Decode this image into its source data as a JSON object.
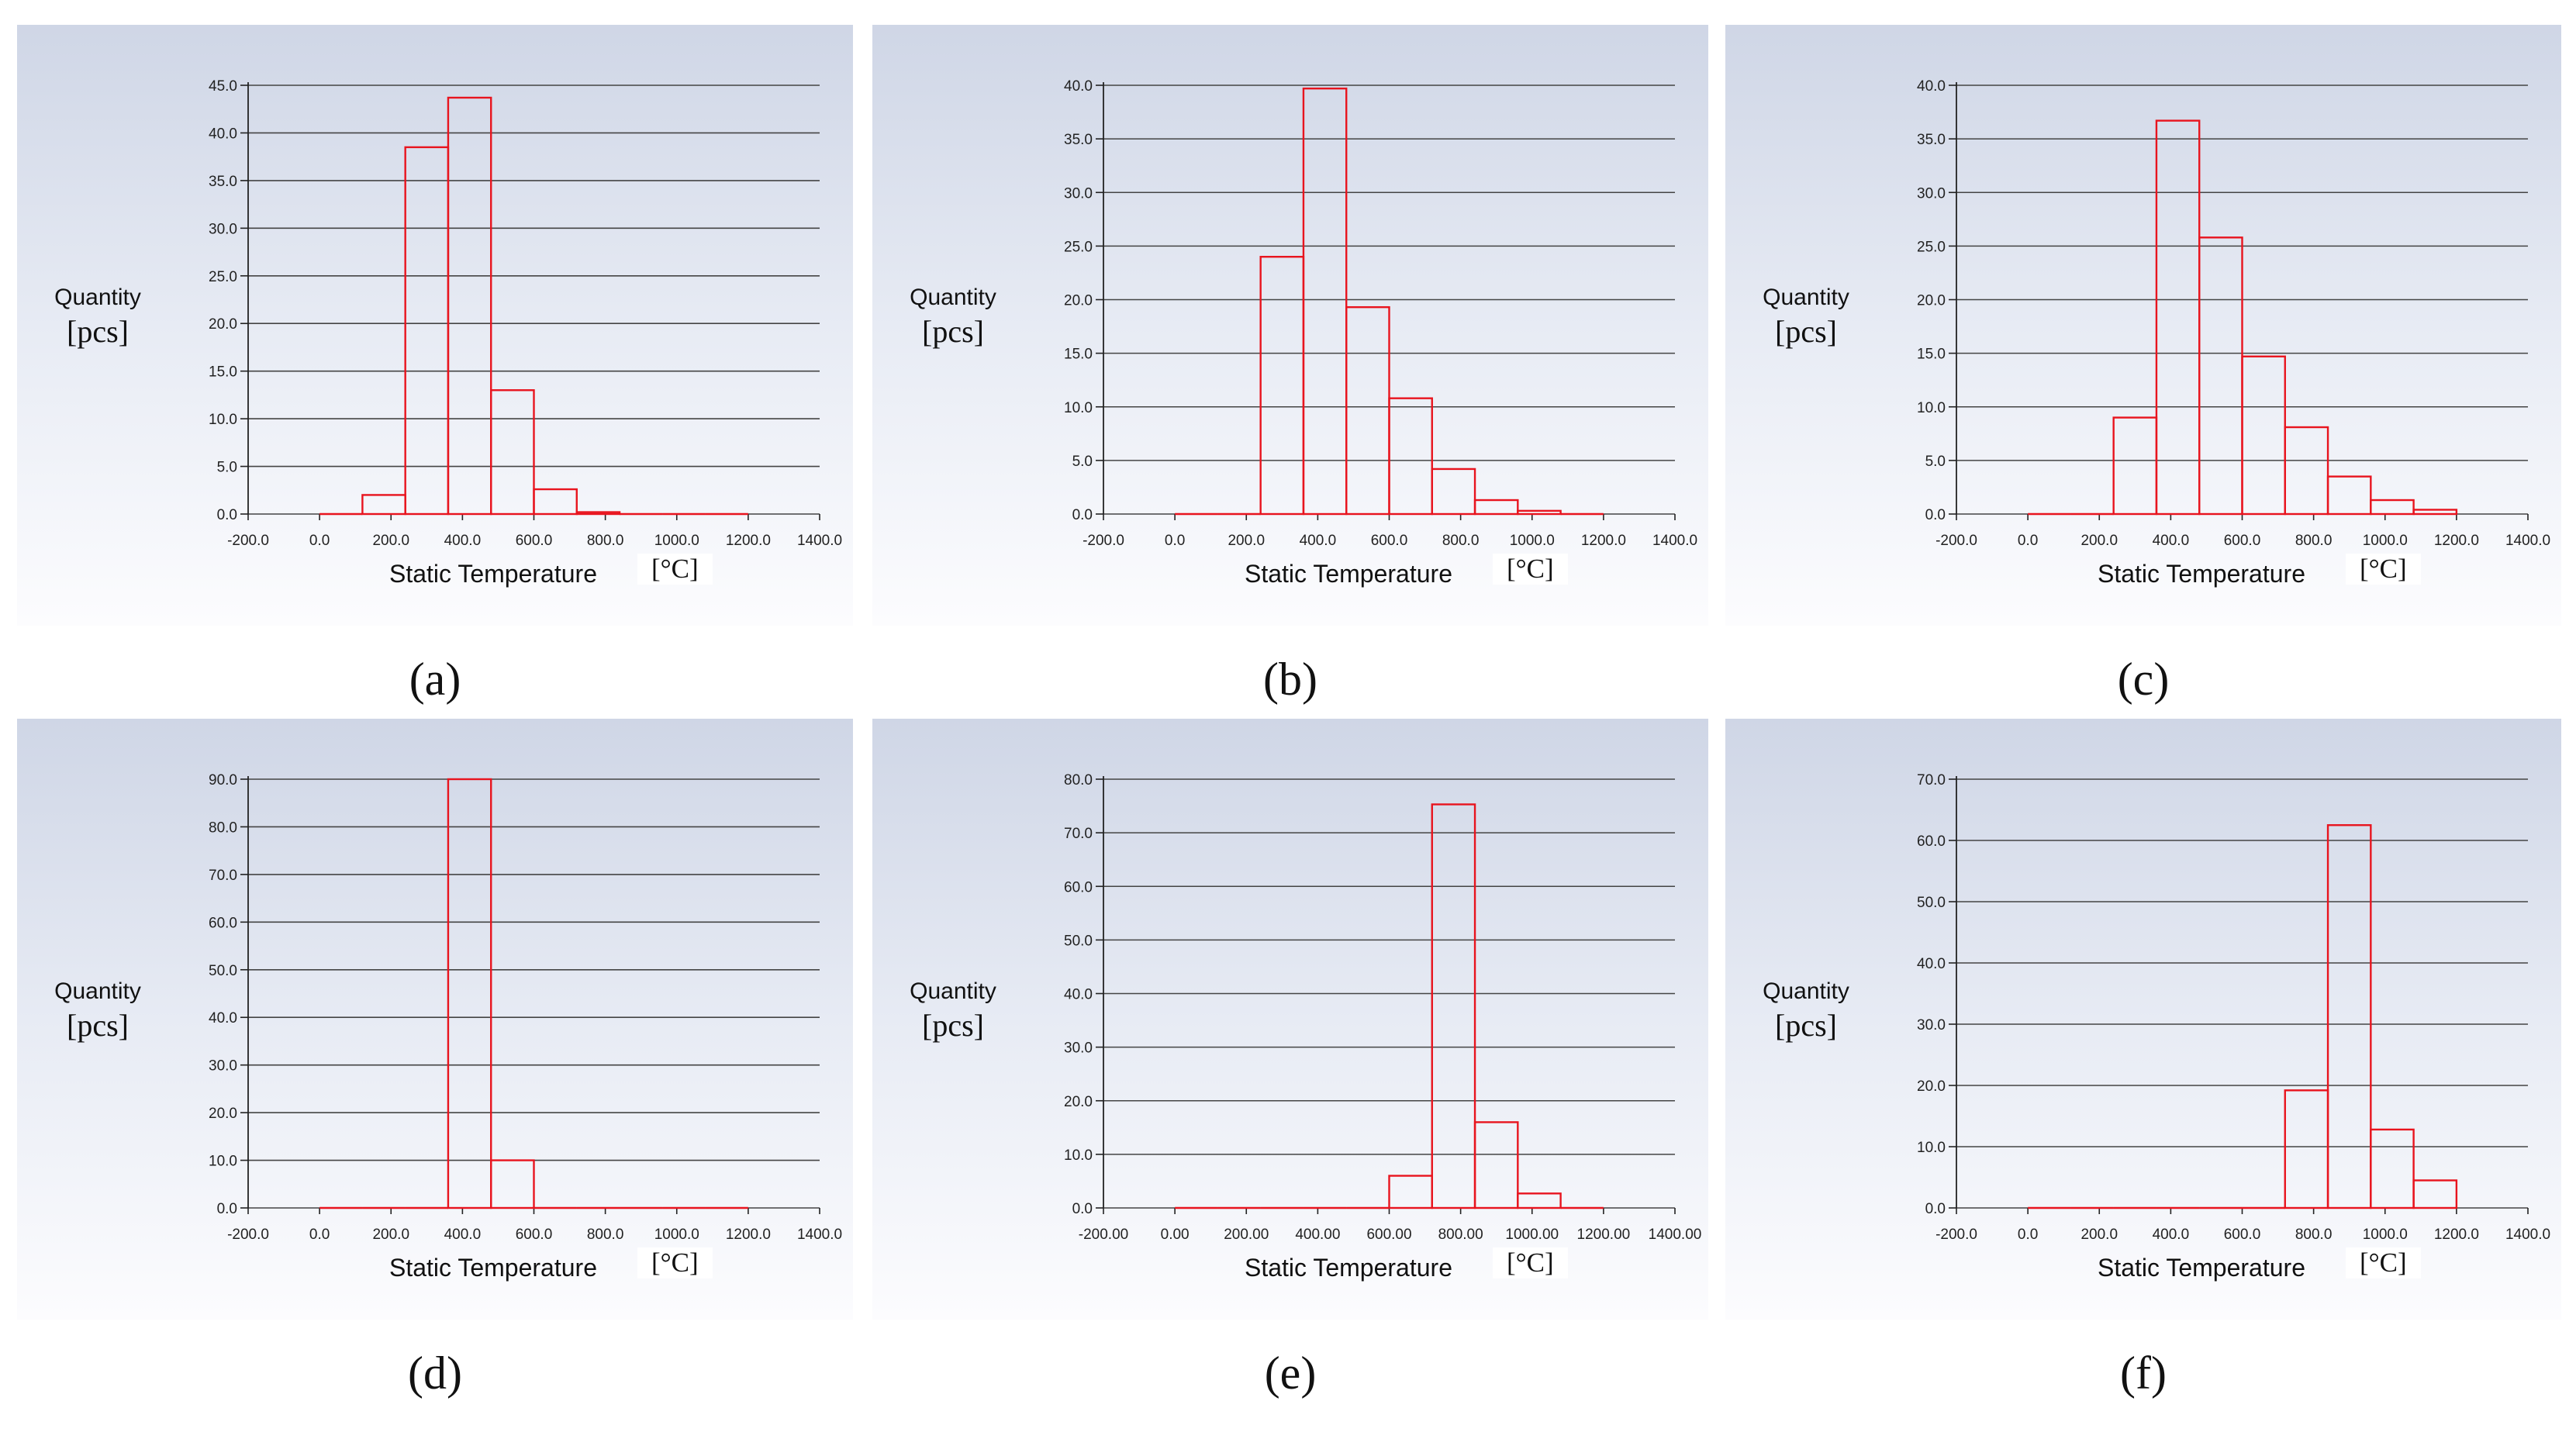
{
  "figure": {
    "panels": [
      {
        "id": "a",
        "caption": "(a)",
        "ylabel_line1": "Quantity",
        "ylabel_line2": "[pcs]",
        "xlabel": "Static Temperature",
        "xunit": "[°C]"
      },
      {
        "id": "b",
        "caption": "(b)",
        "ylabel_line1": "Quantity",
        "ylabel_line2": "[pcs]",
        "xlabel": "Static Temperature",
        "xunit": "[°C]"
      },
      {
        "id": "c",
        "caption": "(c)",
        "ylabel_line1": "Quantity",
        "ylabel_line2": "[pcs]",
        "xlabel": "Static Temperature",
        "xunit": "[°C]"
      },
      {
        "id": "d",
        "caption": "(d)",
        "ylabel_line1": "Quantity",
        "ylabel_line2": "[pcs]",
        "xlabel": "Static Temperature",
        "xunit": "[°C]"
      },
      {
        "id": "e",
        "caption": "(e)",
        "ylabel_line1": "Quantity",
        "ylabel_line2": "[pcs]",
        "xlabel": "Static Temperature",
        "xunit": "[°C]"
      },
      {
        "id": "f",
        "caption": "(f)",
        "ylabel_line1": "Quantity",
        "ylabel_line2": "[pcs]",
        "xlabel": "Static Temperature",
        "xunit": "[°C]"
      }
    ],
    "colors": {
      "bar": "#e8141e",
      "grid": "#444444",
      "axis": "#222222"
    }
  },
  "chart_data": [
    {
      "id": "a",
      "type": "bar",
      "subtype": "histogram",
      "xlabel": "Static Temperature [°C]",
      "ylabel": "Quantity [pcs]",
      "xlim": [
        -200,
        1400
      ],
      "ylim": [
        0,
        45
      ],
      "xticks": [
        -200,
        0,
        200,
        400,
        600,
        800,
        1000,
        1200,
        1400
      ],
      "xtick_labels": [
        "-200.0",
        "0.0",
        "200.0",
        "400.0",
        "600.0",
        "800.0",
        "1000.0",
        "1200.0",
        "1400.0"
      ],
      "yticks": [
        0,
        5,
        10,
        15,
        20,
        25,
        30,
        35,
        40,
        45
      ],
      "ytick_labels": [
        "0.0",
        "5.0",
        "10.0",
        "15.0",
        "20.0",
        "25.0",
        "30.0",
        "35.0",
        "40.0",
        "45.0"
      ],
      "bin_start": 0,
      "bin_width": 120,
      "values": [
        0,
        2,
        38.5,
        43.7,
        13,
        2.6,
        0.2,
        0,
        0,
        0
      ]
    },
    {
      "id": "b",
      "type": "bar",
      "subtype": "histogram",
      "xlabel": "Static Temperature [°C]",
      "ylabel": "Quantity [pcs]",
      "xlim": [
        -200,
        1400
      ],
      "ylim": [
        0,
        40
      ],
      "xticks": [
        -200,
        0,
        200,
        400,
        600,
        800,
        1000,
        1200,
        1400
      ],
      "xtick_labels": [
        "-200.0",
        "0.0",
        "200.0",
        "400.0",
        "600.0",
        "800.0",
        "1000.0",
        "1200.0",
        "1400.0"
      ],
      "yticks": [
        0,
        5,
        10,
        15,
        20,
        25,
        30,
        35,
        40
      ],
      "ytick_labels": [
        "0.0",
        "5.0",
        "10.0",
        "15.0",
        "20.0",
        "25.0",
        "30.0",
        "35.0",
        "40.0"
      ],
      "bin_start": 0,
      "bin_width": 120,
      "values": [
        0,
        0,
        24,
        39.7,
        19.3,
        10.8,
        4.2,
        1.3,
        0.3,
        0
      ]
    },
    {
      "id": "c",
      "type": "bar",
      "subtype": "histogram",
      "xlabel": "Static Temperature [°C]",
      "ylabel": "Quantity [pcs]",
      "xlim": [
        -200,
        1400
      ],
      "ylim": [
        0,
        40
      ],
      "xticks": [
        -200,
        0,
        200,
        400,
        600,
        800,
        1000,
        1200,
        1400
      ],
      "xtick_labels": [
        "-200.0",
        "0.0",
        "200.0",
        "400.0",
        "600.0",
        "800.0",
        "1000.0",
        "1200.0",
        "1400.0"
      ],
      "yticks": [
        0,
        5,
        10,
        15,
        20,
        25,
        30,
        35,
        40
      ],
      "ytick_labels": [
        "0.0",
        "5.0",
        "10.0",
        "15.0",
        "20.0",
        "25.0",
        "30.0",
        "35.0",
        "40.0"
      ],
      "bin_start": 0,
      "bin_width": 120,
      "values": [
        0,
        0,
        9,
        36.7,
        25.8,
        14.7,
        8.1,
        3.5,
        1.3,
        0.4
      ]
    },
    {
      "id": "d",
      "type": "bar",
      "subtype": "histogram",
      "xlabel": "Static Temperature [°C]",
      "ylabel": "Quantity [pcs]",
      "xlim": [
        -200,
        1400
      ],
      "ylim": [
        0,
        90
      ],
      "xticks": [
        -200,
        0,
        200,
        400,
        600,
        800,
        1000,
        1200,
        1400
      ],
      "xtick_labels": [
        "-200.0",
        "0.0",
        "200.0",
        "400.0",
        "600.0",
        "800.0",
        "1000.0",
        "1200.0",
        "1400.0"
      ],
      "yticks": [
        0,
        10,
        20,
        30,
        40,
        50,
        60,
        70,
        80,
        90
      ],
      "ytick_labels": [
        "0.0",
        "10.0",
        "20.0",
        "30.0",
        "40.0",
        "50.0",
        "60.0",
        "70.0",
        "80.0",
        "90.0"
      ],
      "bin_start": 0,
      "bin_width": 120,
      "values": [
        0,
        0,
        0,
        90,
        10,
        0,
        0,
        0,
        0,
        0
      ]
    },
    {
      "id": "e",
      "type": "bar",
      "subtype": "histogram",
      "xlabel": "Static Temperature [°C]",
      "ylabel": "Quantity [pcs]",
      "xlim": [
        -200,
        1400
      ],
      "ylim": [
        0,
        80
      ],
      "xticks": [
        -200,
        0,
        200,
        400,
        600,
        800,
        1000,
        1200,
        1400
      ],
      "xtick_labels": [
        "-200.00",
        "0.00",
        "200.00",
        "400.00",
        "600.00",
        "800.00",
        "1000.00",
        "1200.00",
        "1400.00"
      ],
      "yticks": [
        0,
        10,
        20,
        30,
        40,
        50,
        60,
        70,
        80
      ],
      "ytick_labels": [
        "0.0",
        "10.0",
        "20.0",
        "30.0",
        "40.0",
        "50.0",
        "60.0",
        "70.0",
        "80.0"
      ],
      "bin_start": 0,
      "bin_width": 120,
      "values": [
        0,
        0,
        0,
        0,
        0,
        6,
        75.3,
        16,
        2.7,
        0
      ]
    },
    {
      "id": "f",
      "type": "bar",
      "subtype": "histogram",
      "xlabel": "Static Temperature [°C]",
      "ylabel": "Quantity [pcs]",
      "xlim": [
        -200,
        1400
      ],
      "ylim": [
        0,
        70
      ],
      "xticks": [
        -200,
        0,
        200,
        400,
        600,
        800,
        1000,
        1200,
        1400
      ],
      "xtick_labels": [
        "-200.0",
        "0.0",
        "200.0",
        "400.0",
        "600.0",
        "800.0",
        "1000.0",
        "1200.0",
        "1400.0"
      ],
      "yticks": [
        0,
        10,
        20,
        30,
        40,
        50,
        60,
        70
      ],
      "ytick_labels": [
        "0.0",
        "10.0",
        "20.0",
        "30.0",
        "40.0",
        "50.0",
        "60.0",
        "70.0"
      ],
      "bin_start": 0,
      "bin_width": 120,
      "values": [
        0,
        0,
        0,
        0,
        0,
        0,
        19.2,
        62.5,
        12.8,
        4.5
      ]
    }
  ]
}
